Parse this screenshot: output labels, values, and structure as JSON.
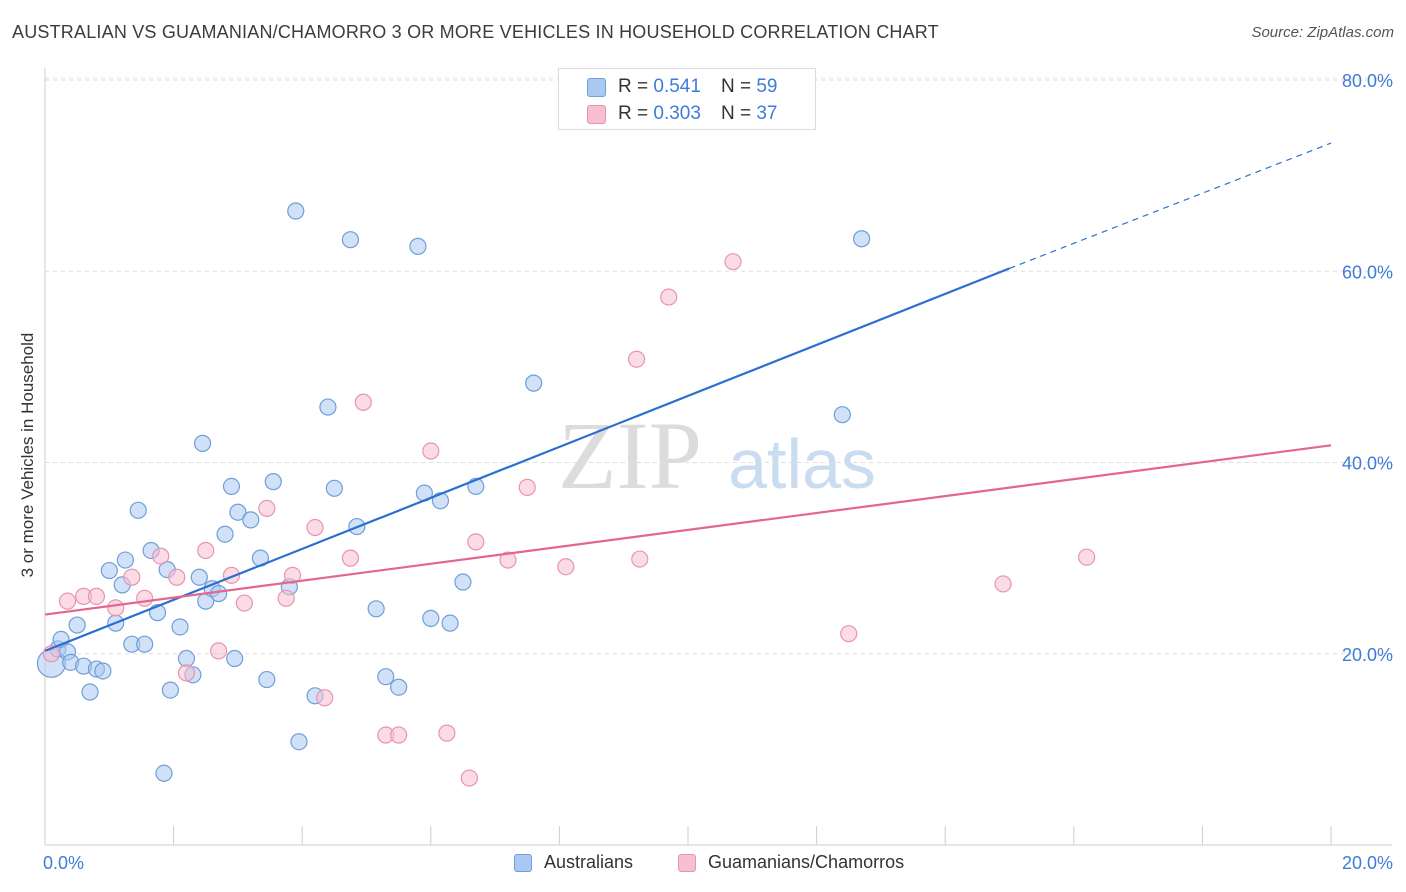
{
  "header": {
    "title": "AUSTRALIAN VS GUAMANIAN/CHAMORRO 3 OR MORE VEHICLES IN HOUSEHOLD CORRELATION CHART",
    "source": "Source: ZipAtlas.com"
  },
  "watermark": {
    "zip": "ZIP",
    "atlas": "atlas"
  },
  "stats": {
    "rows": [
      {
        "r_label": "R =",
        "r_value": "0.541",
        "n_label": "N =",
        "n_value": "59",
        "color": "#a9c8f2"
      },
      {
        "r_label": "R =",
        "r_value": "0.303",
        "n_label": "N =",
        "n_value": "37",
        "color": "#f7bfd0"
      }
    ]
  },
  "legend": {
    "items": [
      {
        "label": "Australians",
        "color": "#a9c8f2"
      },
      {
        "label": "Guamanians/Chamorros",
        "color": "#f7bfd0"
      }
    ]
  },
  "chart_data": {
    "type": "scatter",
    "title": "AUSTRALIAN VS GUAMANIAN/CHAMORRO 3 OR MORE VEHICLES IN HOUSEHOLD CORRELATION CHART",
    "xlabel": "",
    "ylabel": "3 or more Vehicles in Household",
    "xlim": [
      0,
      20
    ],
    "ylim": [
      0,
      80
    ],
    "x_tick_labels": [
      "0.0%",
      "20.0%"
    ],
    "y_ticks": [
      20,
      40,
      60,
      80
    ],
    "y_tick_labels": [
      "20.0%",
      "40.0%",
      "60.0%",
      "80.0%"
    ],
    "grid": true,
    "legend_position": "bottom",
    "series": [
      {
        "name": "Australians",
        "color": "#a9c8f2",
        "stroke": "#6f9fd8",
        "line_color": "#2b6fd1",
        "trend": {
          "x_start": 0,
          "y_start": 20.3,
          "x_end": 15,
          "y_end": 60.3,
          "x_dash_end": 20,
          "y_dash_end": 73.4
        },
        "points": [
          [
            0.1,
            19.0
          ],
          [
            0.2,
            20.5
          ],
          [
            0.25,
            21.5
          ],
          [
            0.35,
            20.2
          ],
          [
            0.4,
            19.1
          ],
          [
            0.5,
            23.0
          ],
          [
            0.6,
            18.7
          ],
          [
            0.7,
            16.0
          ],
          [
            0.8,
            18.4
          ],
          [
            0.9,
            18.2
          ],
          [
            1.0,
            28.7
          ],
          [
            1.1,
            23.2
          ],
          [
            1.2,
            27.2
          ],
          [
            1.25,
            29.8
          ],
          [
            1.35,
            21.0
          ],
          [
            1.45,
            35.0
          ],
          [
            1.55,
            21.0
          ],
          [
            1.65,
            30.8
          ],
          [
            1.75,
            24.3
          ],
          [
            1.85,
            7.5
          ],
          [
            1.9,
            28.8
          ],
          [
            1.95,
            16.2
          ],
          [
            2.1,
            22.8
          ],
          [
            2.2,
            19.5
          ],
          [
            2.3,
            17.8
          ],
          [
            2.4,
            28.0
          ],
          [
            2.45,
            42.0
          ],
          [
            2.5,
            25.5
          ],
          [
            2.6,
            26.8
          ],
          [
            2.7,
            26.3
          ],
          [
            2.8,
            32.5
          ],
          [
            2.9,
            37.5
          ],
          [
            2.95,
            19.5
          ],
          [
            3.0,
            34.8
          ],
          [
            3.2,
            34.0
          ],
          [
            3.35,
            30.0
          ],
          [
            3.45,
            17.3
          ],
          [
            3.55,
            38.0
          ],
          [
            3.8,
            27.0
          ],
          [
            3.9,
            66.3
          ],
          [
            3.95,
            10.8
          ],
          [
            4.2,
            15.6
          ],
          [
            4.4,
            45.8
          ],
          [
            4.5,
            37.3
          ],
          [
            4.75,
            63.3
          ],
          [
            4.85,
            33.3
          ],
          [
            5.15,
            24.7
          ],
          [
            5.3,
            17.6
          ],
          [
            5.5,
            16.5
          ],
          [
            5.8,
            62.6
          ],
          [
            5.9,
            36.8
          ],
          [
            6.0,
            23.7
          ],
          [
            6.15,
            36.0
          ],
          [
            6.3,
            23.2
          ],
          [
            6.5,
            27.5
          ],
          [
            6.7,
            37.5
          ],
          [
            7.6,
            48.3
          ],
          [
            12.4,
            45.0
          ],
          [
            12.7,
            63.4
          ]
        ]
      },
      {
        "name": "Guamanians/Chamorros",
        "color": "#f7bfd0",
        "stroke": "#e894b0",
        "line_color": "#e4668f",
        "trend": {
          "x_start": 0,
          "y_start": 24.1,
          "x_end": 20,
          "y_end": 41.8
        },
        "points": [
          [
            0.1,
            20.0
          ],
          [
            0.35,
            25.5
          ],
          [
            0.6,
            26.0
          ],
          [
            0.8,
            26.0
          ],
          [
            1.1,
            24.8
          ],
          [
            1.35,
            28.0
          ],
          [
            1.55,
            25.8
          ],
          [
            1.8,
            30.2
          ],
          [
            2.05,
            28.0
          ],
          [
            2.2,
            18.0
          ],
          [
            2.5,
            30.8
          ],
          [
            2.7,
            20.3
          ],
          [
            2.9,
            28.2
          ],
          [
            3.1,
            25.3
          ],
          [
            3.45,
            35.2
          ],
          [
            3.75,
            25.8
          ],
          [
            3.85,
            28.2
          ],
          [
            4.2,
            33.2
          ],
          [
            4.35,
            15.4
          ],
          [
            4.75,
            30.0
          ],
          [
            4.95,
            46.3
          ],
          [
            5.3,
            11.5
          ],
          [
            5.5,
            11.5
          ],
          [
            6.0,
            41.2
          ],
          [
            6.25,
            11.7
          ],
          [
            6.6,
            7.0
          ],
          [
            6.7,
            31.7
          ],
          [
            7.2,
            29.8
          ],
          [
            7.5,
            37.4
          ],
          [
            8.1,
            29.1
          ],
          [
            9.2,
            50.8
          ],
          [
            9.25,
            29.9
          ],
          [
            9.7,
            57.3
          ],
          [
            10.7,
            61.0
          ],
          [
            12.5,
            22.1
          ],
          [
            14.9,
            27.3
          ],
          [
            16.2,
            30.1
          ]
        ]
      }
    ]
  }
}
